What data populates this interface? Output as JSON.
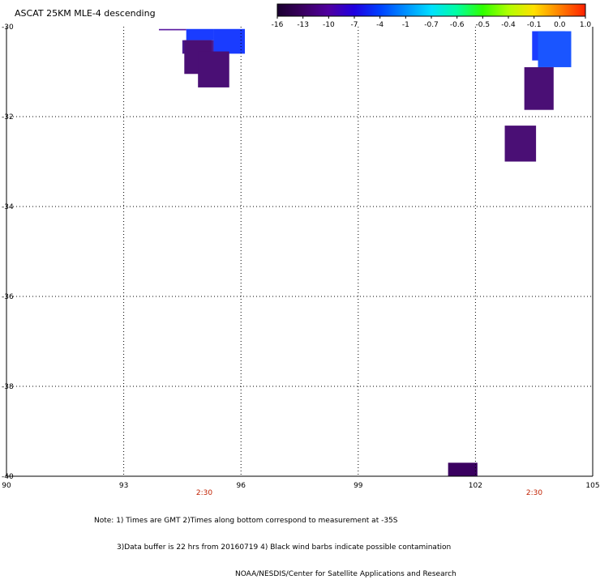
{
  "title": "ASCAT 25KM MLE-4 descending",
  "colorbar": {
    "labels": [
      "-16",
      "-13",
      "-10",
      "-7",
      "-4",
      "-1",
      "-0.7",
      "-0.6",
      "-0.5",
      "-0.4",
      "-0.1",
      "0.0",
      "1.0"
    ],
    "colors": [
      "#1a0030",
      "#3a0060",
      "#5000a0",
      "#2000e0",
      "#0040ff",
      "#0090ff",
      "#00e0ff",
      "#00ffa0",
      "#30ff00",
      "#b0ff00",
      "#ffe000",
      "#ff8000",
      "#ff2000"
    ]
  },
  "map": {
    "lon_ticks": [
      "90",
      "93",
      "96",
      "99",
      "102",
      "105"
    ],
    "lat_ticks": [
      "-30",
      "-32",
      "-34",
      "-36",
      "-38",
      "-40"
    ],
    "time_labels": [
      "2:30",
      "2:30"
    ],
    "cells": [
      {
        "lon0": 95.3,
        "lon1": 96.1,
        "lat0": -30.6,
        "lat1": -30.05,
        "color": "#1a3cff"
      },
      {
        "lon0": 94.6,
        "lon1": 95.3,
        "lat0": -30.3,
        "lat1": -30.05,
        "color": "#1a3cff"
      },
      {
        "lon0": 94.5,
        "lon1": 95.3,
        "lat0": -30.6,
        "lat1": -30.3,
        "color": "#4a1a90"
      },
      {
        "lon0": 94.55,
        "lon1": 95.25,
        "lat0": -31.05,
        "lat1": -30.3,
        "color": "#4a0f75"
      },
      {
        "lon0": 94.9,
        "lon1": 95.7,
        "lat0": -31.35,
        "lat1": -30.55,
        "color": "#4a0f75"
      },
      {
        "lon0": 93.9,
        "lon1": 94.6,
        "lat0": -30.08,
        "lat1": -30.05,
        "color": "#5a1aa0"
      },
      {
        "lon0": 103.45,
        "lon1": 104.3,
        "lat0": -30.75,
        "lat1": -30.1,
        "color": "#1a3cff"
      },
      {
        "lon0": 103.6,
        "lon1": 104.45,
        "lat0": -30.9,
        "lat1": -30.1,
        "color": "#1a55ff"
      },
      {
        "lon0": 103.25,
        "lon1": 104.0,
        "lat0": -31.85,
        "lat1": -30.9,
        "color": "#4a0f75"
      },
      {
        "lon0": 102.75,
        "lon1": 103.55,
        "lat0": -33.0,
        "lat1": -32.2,
        "color": "#4a0f75"
      },
      {
        "lon0": 101.3,
        "lon1": 102.05,
        "lat0": -40.0,
        "lat1": -39.7,
        "color": "#3a0060"
      }
    ]
  },
  "notes": {
    "line1": "Note: 1) Times are GMT 2)Times along bottom correspond to measurement at -35S",
    "line2": "3)Data buffer is 22 hrs from 20160719 4) Black wind barbs indicate possible contamination",
    "line3": "NOAA/NESDIS/Center for Satellite Applications and Research"
  }
}
